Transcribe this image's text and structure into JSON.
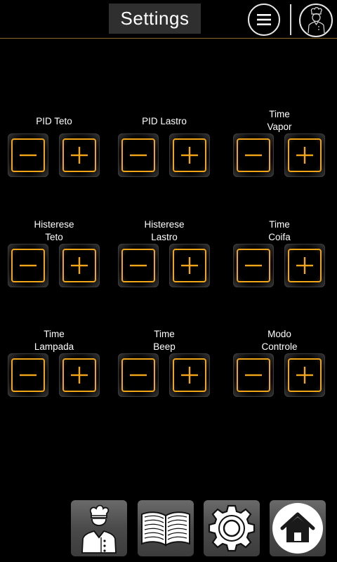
{
  "header": {
    "title": "Settings",
    "menu_icon": "hamburger-menu-icon",
    "avatar_icon": "chef-avatar-icon"
  },
  "colors": {
    "accent": "#f2a516",
    "header_line": "#8a6a2a",
    "title_bg": "#2f2f2f"
  },
  "groups": [
    {
      "id": "pid-teto",
      "label_lines": [
        "PID Teto"
      ]
    },
    {
      "id": "pid-lastro",
      "label_lines": [
        "PID Lastro"
      ]
    },
    {
      "id": "time-vapor",
      "label_lines": [
        "Time",
        "Vapor"
      ]
    },
    {
      "id": "histerese-teto",
      "label_lines": [
        "Histerese",
        "Teto"
      ]
    },
    {
      "id": "histerese-lastro",
      "label_lines": [
        "Histerese",
        "Lastro"
      ]
    },
    {
      "id": "time-coifa",
      "label_lines": [
        "Time",
        "Coifa"
      ]
    },
    {
      "id": "time-lampada",
      "label_lines": [
        "Time",
        "Lampada"
      ]
    },
    {
      "id": "time-beep",
      "label_lines": [
        "Time",
        "Beep"
      ]
    },
    {
      "id": "modo-controle",
      "label_lines": [
        "Modo",
        "Controle"
      ]
    }
  ],
  "bottom_nav": [
    {
      "id": "chef",
      "icon": "chef-icon"
    },
    {
      "id": "recipes",
      "icon": "open-book-icon"
    },
    {
      "id": "settings",
      "icon": "gear-icon"
    },
    {
      "id": "home",
      "icon": "home-icon"
    }
  ]
}
